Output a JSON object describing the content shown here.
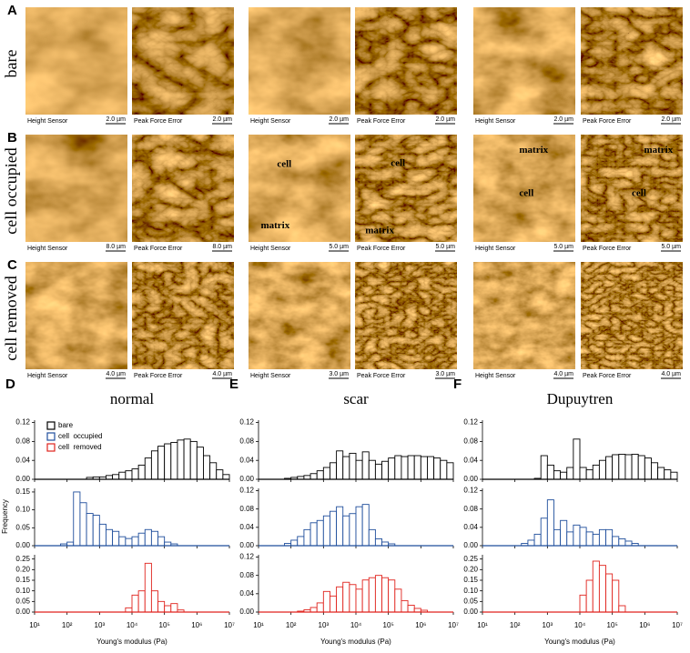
{
  "images": {
    "rows": [
      {
        "letter": "A",
        "label": "bare",
        "panels": [
          {
            "caption": "Height Sensor",
            "scale": "2.0 µm"
          },
          {
            "caption": "Peak Force Error",
            "scale": "2.0 µm"
          },
          {
            "caption": "Height Sensor",
            "scale": "2.0 µm"
          },
          {
            "caption": "Peak Force Error",
            "scale": "2.0 µm"
          },
          {
            "caption": "Height Sensor",
            "scale": "2.0 µm"
          },
          {
            "caption": "Peak Force Error",
            "scale": "2.0 µm"
          }
        ]
      },
      {
        "letter": "B",
        "label": "cell occupied",
        "panels": [
          {
            "caption": "Height Sensor",
            "scale": "8.0 µm"
          },
          {
            "caption": "Peak Force Error",
            "scale": "8.0 µm"
          },
          {
            "caption": "Height Sensor",
            "scale": "5.0 µm",
            "annotations": [
              "cell",
              "matrix"
            ]
          },
          {
            "caption": "Peak Force Error",
            "scale": "5.0 µm",
            "annotations": [
              "cell",
              "matrix"
            ]
          },
          {
            "caption": "Height Sensor",
            "scale": "5.0 µm",
            "annotations": [
              "matrix",
              "cell"
            ]
          },
          {
            "caption": "Peak Force Error",
            "scale": "5.0 µm",
            "annotations": [
              "matrix",
              "cell"
            ]
          }
        ]
      },
      {
        "letter": "C",
        "label": "cell removed",
        "panels": [
          {
            "caption": "Height Sensor",
            "scale": "4.0 µm"
          },
          {
            "caption": "Peak Force Error",
            "scale": "4.0 µm"
          },
          {
            "caption": "Height Sensor",
            "scale": "3.0 µm"
          },
          {
            "caption": "Peak Force Error",
            "scale": "3.0 µm"
          },
          {
            "caption": "Height Sensor",
            "scale": "4.0 µm"
          },
          {
            "caption": "Peak Force Error",
            "scale": "4.0 µm"
          }
        ]
      }
    ]
  },
  "ylabel": "Frequency",
  "legend": [
    {
      "name": "bare",
      "color": "#000000"
    },
    {
      "name": "cell  occupied",
      "color": "#1f4e9c"
    },
    {
      "name": "cell  removed",
      "color": "#e0231d"
    }
  ],
  "chart_data": [
    {
      "type": "histogram",
      "panel_label": "D",
      "title": "normal",
      "log_x": true,
      "color": "#000000",
      "bins": [
        10,
        15.8,
        25.1,
        39.8,
        63.1,
        100,
        158,
        251,
        398,
        631,
        1000,
        1585,
        2512,
        3981,
        6310,
        10000,
        15849,
        25119,
        39811,
        63096,
        100000,
        158489,
        251189,
        398107,
        630957,
        1000000,
        1584893,
        2511886,
        3981072,
        6309573,
        10000000
      ],
      "values": [
        0,
        0,
        0,
        0,
        0,
        0,
        0,
        0,
        0.004,
        0.005,
        0.005,
        0.008,
        0.01,
        0.015,
        0.018,
        0.022,
        0.03,
        0.045,
        0.06,
        0.07,
        0.075,
        0.078,
        0.083,
        0.085,
        0.08,
        0.068,
        0.05,
        0.035,
        0.02,
        0.01
      ],
      "xlim": [
        10,
        10000000
      ],
      "xticks": [
        10,
        100,
        1000,
        10000,
        100000,
        1000000,
        10000000
      ],
      "ylim": [
        0,
        0.125
      ],
      "yticks": [
        {
          "value": 0,
          "label": "0.00"
        },
        {
          "value": 0.04,
          "label": "0.04"
        },
        {
          "value": 0.08,
          "label": "0.08"
        },
        {
          "value": 0.12,
          "label": "0.12"
        }
      ]
    },
    {
      "type": "histogram",
      "log_x": true,
      "color": "#1f4e9c",
      "bins": [
        10,
        15.8,
        25.1,
        39.8,
        63.1,
        100,
        158,
        251,
        398,
        631,
        1000,
        1585,
        2512,
        3981,
        6310,
        10000,
        15849,
        25119,
        39811,
        63096,
        100000,
        158489,
        251189,
        398107,
        630957,
        1000000,
        1584893,
        2511886,
        3981072,
        6309573,
        10000000
      ],
      "values": [
        0,
        0,
        0,
        0,
        0.005,
        0.01,
        0.15,
        0.12,
        0.09,
        0.085,
        0.06,
        0.045,
        0.04,
        0.025,
        0.02,
        0.025,
        0.035,
        0.045,
        0.04,
        0.025,
        0.01,
        0.005,
        0,
        0,
        0,
        0,
        0,
        0,
        0,
        0
      ],
      "xlim": [
        10,
        10000000
      ],
      "xticks": [
        10,
        100,
        1000,
        10000,
        100000,
        1000000,
        10000000
      ],
      "ylim": [
        0,
        0.16
      ],
      "yticks": [
        {
          "value": 0,
          "label": "0.00"
        },
        {
          "value": 0.05,
          "label": "0.05"
        },
        {
          "value": 0.1,
          "label": "0.10"
        },
        {
          "value": 0.15,
          "label": "0.15"
        }
      ]
    },
    {
      "type": "histogram",
      "log_x": true,
      "color": "#e0231d",
      "xlabel": "Young's modulus (Pa)",
      "bins": [
        10,
        15.8,
        25.1,
        39.8,
        63.1,
        100,
        158,
        251,
        398,
        631,
        1000,
        1585,
        2512,
        3981,
        6310,
        10000,
        15849,
        25119,
        39811,
        63096,
        100000,
        158489,
        251189,
        398107,
        630957,
        1000000,
        1584893,
        2511886,
        3981072,
        6309573,
        10000000
      ],
      "values": [
        0,
        0,
        0,
        0,
        0,
        0,
        0,
        0,
        0,
        0,
        0,
        0,
        0,
        0,
        0.02,
        0.08,
        0.1,
        0.23,
        0.1,
        0.05,
        0.03,
        0.04,
        0.01,
        0,
        0,
        0,
        0,
        0,
        0,
        0
      ],
      "xlim": [
        10,
        10000000
      ],
      "xticks": [
        {
          "value": 10,
          "label": "10¹"
        },
        {
          "value": 100,
          "label": "10²"
        },
        {
          "value": 1000,
          "label": "10³"
        },
        {
          "value": 10000,
          "label": "10⁴"
        },
        {
          "value": 100000,
          "label": "10⁵"
        },
        {
          "value": 1000000,
          "label": "10⁶"
        },
        {
          "value": 10000000,
          "label": "10⁷"
        }
      ],
      "ylim": [
        0,
        0.27
      ],
      "yticks": [
        {
          "value": 0,
          "label": "0.00"
        },
        {
          "value": 0.05,
          "label": "0.05"
        },
        {
          "value": 0.1,
          "label": "0.10"
        },
        {
          "value": 0.15,
          "label": "0.15"
        },
        {
          "value": 0.2,
          "label": "0.20"
        },
        {
          "value": 0.25,
          "label": "0.25"
        }
      ]
    },
    {
      "type": "histogram",
      "panel_label": "E",
      "title": "scar",
      "log_x": true,
      "color": "#000000",
      "bins": [
        10,
        15.8,
        25.1,
        39.8,
        63.1,
        100,
        158,
        251,
        398,
        631,
        1000,
        1585,
        2512,
        3981,
        6310,
        10000,
        15849,
        25119,
        39811,
        63096,
        100000,
        158489,
        251189,
        398107,
        630957,
        1000000,
        1584893,
        2511886,
        3981072,
        6309573,
        10000000
      ],
      "values": [
        0,
        0,
        0,
        0,
        0.002,
        0.004,
        0.006,
        0.008,
        0.012,
        0.018,
        0.025,
        0.035,
        0.06,
        0.048,
        0.055,
        0.04,
        0.058,
        0.04,
        0.032,
        0.038,
        0.045,
        0.05,
        0.048,
        0.05,
        0.05,
        0.048,
        0.048,
        0.045,
        0.04,
        0.035
      ],
      "xlim": [
        10,
        10000000
      ],
      "xticks": [
        10,
        100,
        1000,
        10000,
        100000,
        1000000,
        10000000
      ],
      "ylim": [
        0,
        0.125
      ],
      "yticks": [
        {
          "value": 0,
          "label": "0.00"
        },
        {
          "value": 0.04,
          "label": "0.04"
        },
        {
          "value": 0.08,
          "label": "0.08"
        },
        {
          "value": 0.12,
          "label": "0.12"
        }
      ]
    },
    {
      "type": "histogram",
      "log_x": true,
      "color": "#1f4e9c",
      "bins": [
        10,
        15.8,
        25.1,
        39.8,
        63.1,
        100,
        158,
        251,
        398,
        631,
        1000,
        1585,
        2512,
        3981,
        6310,
        10000,
        15849,
        25119,
        39811,
        63096,
        100000,
        158489,
        251189,
        398107,
        630957,
        1000000,
        1584893,
        2511886,
        3981072,
        6309573,
        10000000
      ],
      "values": [
        0,
        0,
        0,
        0,
        0.005,
        0.012,
        0.02,
        0.035,
        0.05,
        0.055,
        0.065,
        0.075,
        0.085,
        0.065,
        0.07,
        0.085,
        0.09,
        0.035,
        0.015,
        0.008,
        0.004,
        0,
        0,
        0,
        0,
        0,
        0,
        0,
        0,
        0
      ],
      "xlim": [
        10,
        10000000
      ],
      "xticks": [
        10,
        100,
        1000,
        10000,
        100000,
        1000000,
        10000000
      ],
      "ylim": [
        0,
        0.125
      ],
      "yticks": [
        {
          "value": 0,
          "label": "0.00"
        },
        {
          "value": 0.04,
          "label": "0.04"
        },
        {
          "value": 0.08,
          "label": "0.08"
        },
        {
          "value": 0.12,
          "label": "0.12"
        }
      ]
    },
    {
      "type": "histogram",
      "log_x": true,
      "color": "#e0231d",
      "xlabel": "Young's modulus (Pa)",
      "bins": [
        10,
        15.8,
        25.1,
        39.8,
        63.1,
        100,
        158,
        251,
        398,
        631,
        1000,
        1585,
        2512,
        3981,
        6310,
        10000,
        15849,
        25119,
        39811,
        63096,
        100000,
        158489,
        251189,
        398107,
        630957,
        1000000,
        1584893,
        2511886,
        3981072,
        6309573,
        10000000
      ],
      "values": [
        0,
        0,
        0,
        0,
        0,
        0,
        0.002,
        0.005,
        0.01,
        0.02,
        0.045,
        0.035,
        0.055,
        0.065,
        0.06,
        0.05,
        0.07,
        0.075,
        0.08,
        0.075,
        0.07,
        0.05,
        0.025,
        0.015,
        0.008,
        0.004,
        0,
        0,
        0,
        0
      ],
      "xlim": [
        10,
        10000000
      ],
      "xticks": [
        {
          "value": 10,
          "label": "10¹"
        },
        {
          "value": 100,
          "label": "10²"
        },
        {
          "value": 1000,
          "label": "10³"
        },
        {
          "value": 10000,
          "label": "10⁴"
        },
        {
          "value": 100000,
          "label": "10⁵"
        },
        {
          "value": 1000000,
          "label": "10⁶"
        },
        {
          "value": 10000000,
          "label": "10⁷"
        }
      ],
      "ylim": [
        0,
        0.125
      ],
      "yticks": [
        {
          "value": 0,
          "label": "0.00"
        },
        {
          "value": 0.04,
          "label": "0.04"
        },
        {
          "value": 0.08,
          "label": "0.08"
        },
        {
          "value": 0.12,
          "label": "0.12"
        }
      ]
    },
    {
      "type": "histogram",
      "panel_label": "F",
      "title": "Dupuytren",
      "log_x": true,
      "color": "#000000",
      "bins": [
        10,
        15.8,
        25.1,
        39.8,
        63.1,
        100,
        158,
        251,
        398,
        631,
        1000,
        1585,
        2512,
        3981,
        6310,
        10000,
        15849,
        25119,
        39811,
        63096,
        100000,
        158489,
        251189,
        398107,
        630957,
        1000000,
        1584893,
        2511886,
        3981072,
        6309573,
        10000000
      ],
      "values": [
        0,
        0,
        0,
        0,
        0,
        0,
        0,
        0,
        0.002,
        0.05,
        0.03,
        0.018,
        0.015,
        0.025,
        0.085,
        0.025,
        0.02,
        0.03,
        0.04,
        0.048,
        0.052,
        0.053,
        0.052,
        0.053,
        0.05,
        0.045,
        0.035,
        0.025,
        0.02,
        0.015
      ],
      "xlim": [
        10,
        10000000
      ],
      "xticks": [
        10,
        100,
        1000,
        10000,
        100000,
        1000000,
        10000000
      ],
      "ylim": [
        0,
        0.125
      ],
      "yticks": [
        {
          "value": 0,
          "label": "0.00"
        },
        {
          "value": 0.04,
          "label": "0.04"
        },
        {
          "value": 0.08,
          "label": "0.08"
        },
        {
          "value": 0.12,
          "label": "0.12"
        }
      ]
    },
    {
      "type": "histogram",
      "log_x": true,
      "color": "#1f4e9c",
      "bins": [
        10,
        15.8,
        25.1,
        39.8,
        63.1,
        100,
        158,
        251,
        398,
        631,
        1000,
        1585,
        2512,
        3981,
        6310,
        10000,
        15849,
        25119,
        39811,
        63096,
        100000,
        158489,
        251189,
        398107,
        630957,
        1000000,
        1584893,
        2511886,
        3981072,
        6309573,
        10000000
      ],
      "values": [
        0,
        0,
        0,
        0,
        0,
        0,
        0.005,
        0.012,
        0.025,
        0.06,
        0.1,
        0.035,
        0.055,
        0.03,
        0.045,
        0.04,
        0.03,
        0.025,
        0.035,
        0.035,
        0.02,
        0.015,
        0.01,
        0.005,
        0,
        0,
        0,
        0,
        0,
        0
      ],
      "xlim": [
        10,
        10000000
      ],
      "xticks": [
        10,
        100,
        1000,
        10000,
        100000,
        1000000,
        10000000
      ],
      "ylim": [
        0,
        0.125
      ],
      "yticks": [
        {
          "value": 0,
          "label": "0.00"
        },
        {
          "value": 0.04,
          "label": "0.04"
        },
        {
          "value": 0.08,
          "label": "0.08"
        },
        {
          "value": 0.12,
          "label": "0.12"
        }
      ]
    },
    {
      "type": "histogram",
      "log_x": true,
      "color": "#e0231d",
      "xlabel": "Young's modulus (Pa)",
      "bins": [
        10,
        15.8,
        25.1,
        39.8,
        63.1,
        100,
        158,
        251,
        398,
        631,
        1000,
        1585,
        2512,
        3981,
        6310,
        10000,
        15849,
        25119,
        39811,
        63096,
        100000,
        158489,
        251189,
        398107,
        630957,
        1000000,
        1584893,
        2511886,
        3981072,
        6309573,
        10000000
      ],
      "values": [
        0,
        0,
        0,
        0,
        0,
        0,
        0,
        0,
        0,
        0,
        0,
        0,
        0,
        0,
        0,
        0.08,
        0.15,
        0.24,
        0.22,
        0.18,
        0.15,
        0.03,
        0,
        0,
        0,
        0,
        0,
        0,
        0,
        0
      ],
      "xlim": [
        10,
        10000000
      ],
      "xticks": [
        {
          "value": 10,
          "label": "10¹"
        },
        {
          "value": 100,
          "label": "10²"
        },
        {
          "value": 1000,
          "label": "10³"
        },
        {
          "value": 10000,
          "label": "10⁴"
        },
        {
          "value": 100000,
          "label": "10⁵"
        },
        {
          "value": 1000000,
          "label": "10⁶"
        },
        {
          "value": 10000000,
          "label": "10⁷"
        }
      ],
      "ylim": [
        0,
        0.27
      ],
      "yticks": [
        {
          "value": 0,
          "label": "0.00"
        },
        {
          "value": 0.05,
          "label": "0.05"
        },
        {
          "value": 0.1,
          "label": "0.10"
        },
        {
          "value": 0.15,
          "label": "0.15"
        },
        {
          "value": 0.2,
          "label": "0.20"
        },
        {
          "value": 0.25,
          "label": "0.25"
        }
      ]
    }
  ]
}
